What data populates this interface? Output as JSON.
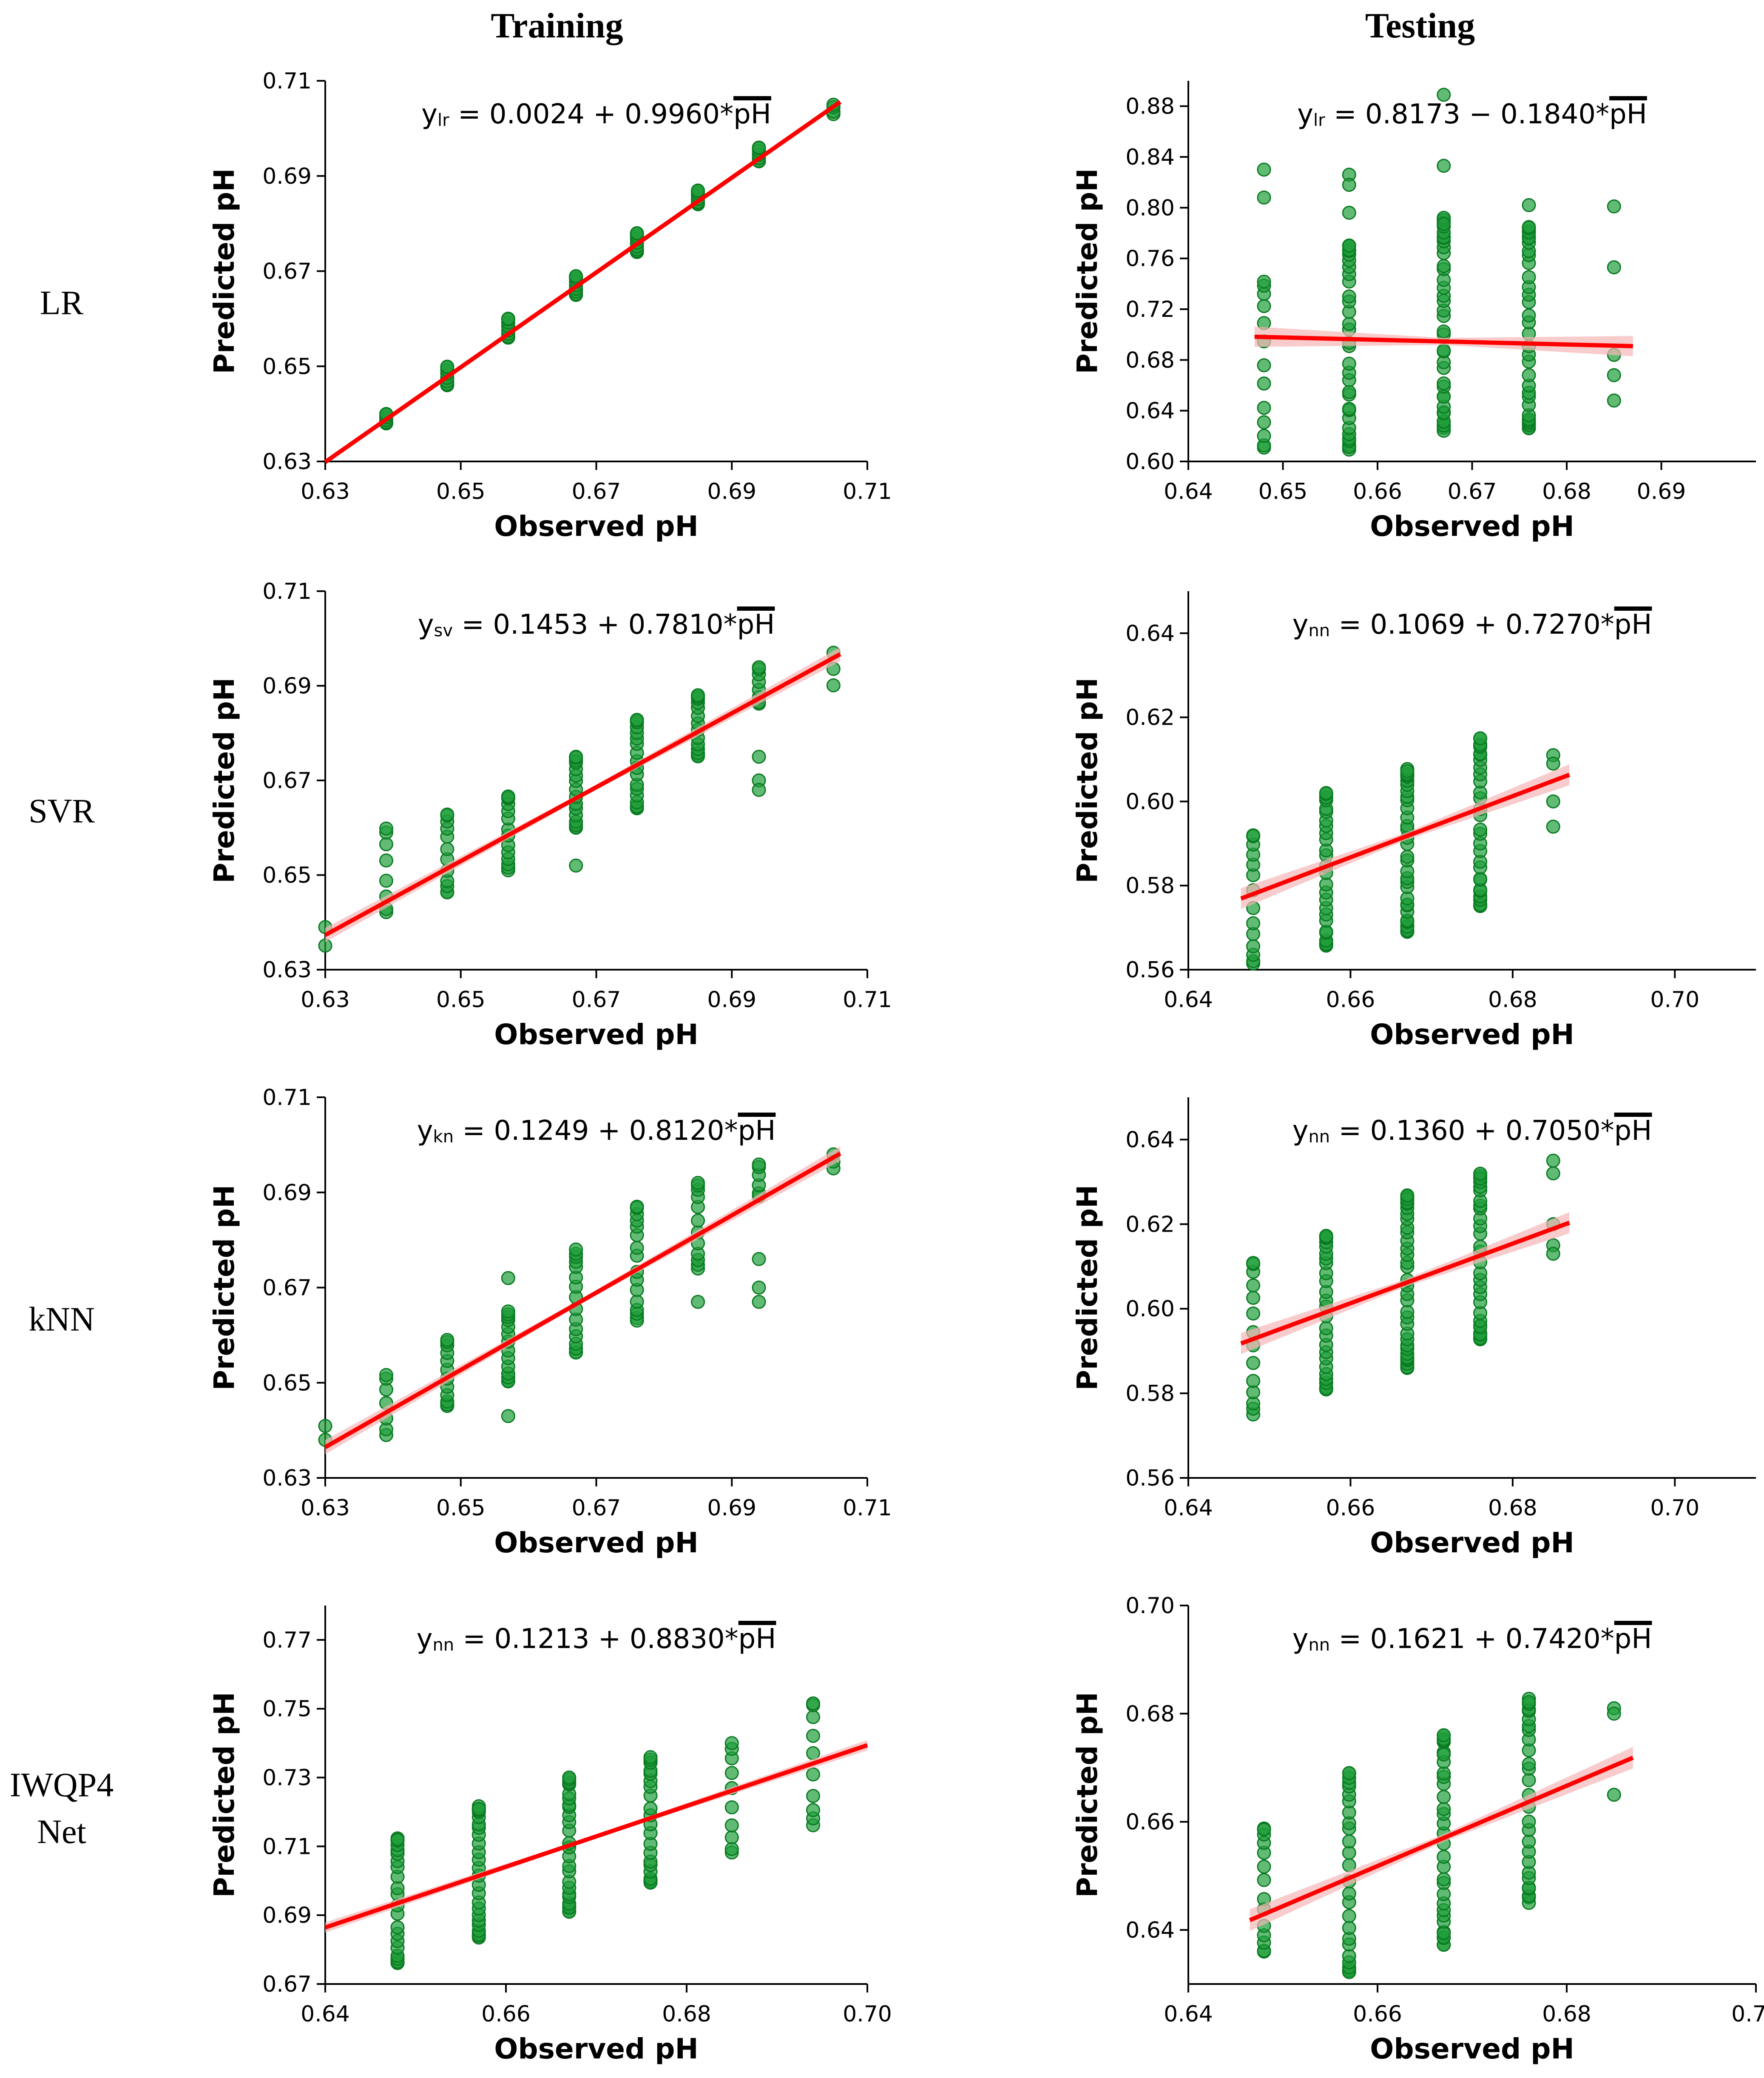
{
  "column_headers": [
    "Training",
    "Testing"
  ],
  "row_labels": [
    {
      "lines": [
        "LR"
      ]
    },
    {
      "lines": [
        "SVR"
      ]
    },
    {
      "lines": [
        "kNN"
      ]
    },
    {
      "lines": [
        "IWQP4",
        "Net"
      ]
    }
  ],
  "colors": {
    "point_fill": "#1f9e3a",
    "point_stroke": "#0a7a22",
    "fit_line": "#ff0000",
    "confidence_band": "#f5b6b6",
    "axis": "#000000"
  },
  "chart_data": [
    {
      "id": "lr-training",
      "type": "scatter",
      "row": 0,
      "col": 0,
      "xlabel": "Observed pH",
      "ylabel": "Predicted pH",
      "xlim": [
        0.63,
        0.71
      ],
      "ylim": [
        0.63,
        0.71
      ],
      "xticks": [
        0.63,
        0.65,
        0.67,
        0.69,
        0.71
      ],
      "yticks": [
        0.63,
        0.65,
        0.67,
        0.69,
        0.71
      ],
      "tick_decimals": 2,
      "equation": {
        "prefix": "y",
        "sub": "lr",
        "body": " = 0.0024 + 0.9960*",
        "var": "pH"
      },
      "fit": {
        "intercept": 0.0024,
        "slope": 0.996,
        "x_range": [
          0.63,
          0.706
        ],
        "band": 0.0
      },
      "columns": [
        {
          "x": 0.639,
          "y_min": 0.638,
          "y_max": 0.64,
          "n": 6
        },
        {
          "x": 0.648,
          "y_min": 0.646,
          "y_max": 0.65,
          "n": 8
        },
        {
          "x": 0.657,
          "y_min": 0.656,
          "y_max": 0.66,
          "n": 8
        },
        {
          "x": 0.667,
          "y_min": 0.665,
          "y_max": 0.669,
          "n": 9
        },
        {
          "x": 0.676,
          "y_min": 0.674,
          "y_max": 0.678,
          "n": 9
        },
        {
          "x": 0.685,
          "y_min": 0.684,
          "y_max": 0.687,
          "n": 8
        },
        {
          "x": 0.694,
          "y_min": 0.693,
          "y_max": 0.696,
          "n": 7
        },
        {
          "x": 0.705,
          "y_min": 0.703,
          "y_max": 0.705,
          "n": 4
        }
      ],
      "points": []
    },
    {
      "id": "lr-testing",
      "type": "scatter",
      "row": 0,
      "col": 1,
      "xlabel": "Observed pH",
      "ylabel": "Predicted pH",
      "xlim": [
        0.64,
        0.7
      ],
      "ylim": [
        0.6,
        0.9
      ],
      "xticks": [
        0.64,
        0.65,
        0.66,
        0.67,
        0.68,
        0.69
      ],
      "yticks": [
        0.6,
        0.64,
        0.68,
        0.72,
        0.76,
        0.8,
        0.84,
        0.88
      ],
      "tick_decimals": 2,
      "equation": {
        "prefix": "y",
        "sub": "lr",
        "body": " = 0.8173 − 0.1840*",
        "var": "pH"
      },
      "fit": {
        "intercept": 0.8173,
        "slope": -0.184,
        "x_range": [
          0.647,
          0.687
        ],
        "band": 0.008
      },
      "columns": [
        {
          "x": 0.648,
          "y_min": 0.61,
          "y_max": 0.742,
          "n": 13
        },
        {
          "x": 0.657,
          "y_min": 0.608,
          "y_max": 0.775,
          "n": 34
        },
        {
          "x": 0.667,
          "y_min": 0.624,
          "y_max": 0.792,
          "n": 38
        },
        {
          "x": 0.676,
          "y_min": 0.622,
          "y_max": 0.786,
          "n": 32
        }
      ],
      "points": [
        {
          "x": 0.648,
          "y": 0.83
        },
        {
          "x": 0.648,
          "y": 0.808
        },
        {
          "x": 0.657,
          "y": 0.826
        },
        {
          "x": 0.657,
          "y": 0.818
        },
        {
          "x": 0.657,
          "y": 0.796
        },
        {
          "x": 0.667,
          "y": 0.889
        },
        {
          "x": 0.667,
          "y": 0.833
        },
        {
          "x": 0.676,
          "y": 0.802
        },
        {
          "x": 0.685,
          "y": 0.801
        },
        {
          "x": 0.685,
          "y": 0.753
        },
        {
          "x": 0.685,
          "y": 0.684
        },
        {
          "x": 0.685,
          "y": 0.668
        },
        {
          "x": 0.685,
          "y": 0.648
        }
      ]
    },
    {
      "id": "svr-training",
      "type": "scatter",
      "row": 1,
      "col": 0,
      "xlabel": "Observed pH",
      "ylabel": "Predicted pH",
      "xlim": [
        0.63,
        0.71
      ],
      "ylim": [
        0.63,
        0.71
      ],
      "xticks": [
        0.63,
        0.65,
        0.67,
        0.69,
        0.71
      ],
      "yticks": [
        0.63,
        0.65,
        0.67,
        0.69,
        0.71
      ],
      "tick_decimals": 2,
      "equation": {
        "prefix": "y",
        "sub": "sv",
        "body": " = 0.1453 + 0.7810*",
        "var": "pH"
      },
      "fit": {
        "intercept": 0.1453,
        "slope": 0.781,
        "x_range": [
          0.63,
          0.706
        ],
        "band": 0.0015
      },
      "columns": [
        {
          "x": 0.63,
          "y_min": 0.635,
          "y_max": 0.639,
          "n": 2
        },
        {
          "x": 0.639,
          "y_min": 0.642,
          "y_max": 0.66,
          "n": 8
        },
        {
          "x": 0.648,
          "y_min": 0.646,
          "y_max": 0.663,
          "n": 12
        },
        {
          "x": 0.657,
          "y_min": 0.651,
          "y_max": 0.667,
          "n": 14
        },
        {
          "x": 0.667,
          "y_min": 0.66,
          "y_max": 0.675,
          "n": 16
        },
        {
          "x": 0.676,
          "y_min": 0.664,
          "y_max": 0.683,
          "n": 18
        },
        {
          "x": 0.685,
          "y_min": 0.675,
          "y_max": 0.688,
          "n": 14
        },
        {
          "x": 0.694,
          "y_min": 0.686,
          "y_max": 0.694,
          "n": 8
        },
        {
          "x": 0.705,
          "y_min": 0.69,
          "y_max": 0.697,
          "n": 3
        }
      ],
      "points": [
        {
          "x": 0.667,
          "y": 0.652
        },
        {
          "x": 0.694,
          "y": 0.675
        },
        {
          "x": 0.694,
          "y": 0.67
        },
        {
          "x": 0.694,
          "y": 0.668
        }
      ]
    },
    {
      "id": "svr-testing",
      "type": "scatter",
      "row": 1,
      "col": 1,
      "xlabel": "Observed pH",
      "ylabel": "Predicted pH",
      "xlim": [
        0.64,
        0.71
      ],
      "ylim": [
        0.56,
        0.65
      ],
      "xticks": [
        0.64,
        0.66,
        0.68,
        0.7
      ],
      "yticks": [
        0.56,
        0.58,
        0.6,
        0.62,
        0.64
      ],
      "tick_decimals": 2,
      "equation": {
        "prefix": "y",
        "sub": "nn",
        "body": " = 0.1069 + 0.7270*",
        "var": "pH"
      },
      "fit": {
        "intercept": 0.1069,
        "slope": 0.727,
        "x_range": [
          0.6465,
          0.687
        ],
        "band": 0.0025
      },
      "columns": [
        {
          "x": 0.648,
          "y_min": 0.561,
          "y_max": 0.592,
          "n": 14
        },
        {
          "x": 0.657,
          "y_min": 0.565,
          "y_max": 0.602,
          "n": 28
        },
        {
          "x": 0.667,
          "y_min": 0.569,
          "y_max": 0.608,
          "n": 34
        },
        {
          "x": 0.676,
          "y_min": 0.575,
          "y_max": 0.615,
          "n": 30
        }
      ],
      "points": [
        {
          "x": 0.685,
          "y": 0.611
        },
        {
          "x": 0.685,
          "y": 0.609
        },
        {
          "x": 0.685,
          "y": 0.6
        },
        {
          "x": 0.685,
          "y": 0.594
        }
      ]
    },
    {
      "id": "knn-training",
      "type": "scatter",
      "row": 2,
      "col": 0,
      "xlabel": "Observed pH",
      "ylabel": "Predicted pH",
      "xlim": [
        0.63,
        0.71
      ],
      "ylim": [
        0.63,
        0.71
      ],
      "xticks": [
        0.63,
        0.65,
        0.67,
        0.69,
        0.71
      ],
      "yticks": [
        0.63,
        0.65,
        0.67,
        0.69,
        0.71
      ],
      "tick_decimals": 2,
      "equation": {
        "prefix": "y",
        "sub": "kn",
        "body": " = 0.1249 + 0.8120*",
        "var": "pH"
      },
      "fit": {
        "intercept": 0.1249,
        "slope": 0.812,
        "x_range": [
          0.63,
          0.706
        ],
        "band": 0.0015
      },
      "columns": [
        {
          "x": 0.63,
          "y_min": 0.638,
          "y_max": 0.641,
          "n": 2
        },
        {
          "x": 0.639,
          "y_min": 0.639,
          "y_max": 0.652,
          "n": 7
        },
        {
          "x": 0.648,
          "y_min": 0.645,
          "y_max": 0.659,
          "n": 12
        },
        {
          "x": 0.657,
          "y_min": 0.65,
          "y_max": 0.665,
          "n": 14
        },
        {
          "x": 0.667,
          "y_min": 0.656,
          "y_max": 0.678,
          "n": 16
        },
        {
          "x": 0.676,
          "y_min": 0.663,
          "y_max": 0.687,
          "n": 16
        },
        {
          "x": 0.685,
          "y_min": 0.674,
          "y_max": 0.692,
          "n": 12
        },
        {
          "x": 0.694,
          "y_min": 0.689,
          "y_max": 0.696,
          "n": 6
        },
        {
          "x": 0.705,
          "y_min": 0.695,
          "y_max": 0.698,
          "n": 3
        }
      ],
      "points": [
        {
          "x": 0.657,
          "y": 0.643
        },
        {
          "x": 0.657,
          "y": 0.672
        },
        {
          "x": 0.685,
          "y": 0.667
        },
        {
          "x": 0.694,
          "y": 0.676
        },
        {
          "x": 0.694,
          "y": 0.67
        },
        {
          "x": 0.694,
          "y": 0.667
        }
      ]
    },
    {
      "id": "knn-testing",
      "type": "scatter",
      "row": 2,
      "col": 1,
      "xlabel": "Observed pH",
      "ylabel": "Predicted pH",
      "xlim": [
        0.64,
        0.71
      ],
      "ylim": [
        0.56,
        0.65
      ],
      "xticks": [
        0.64,
        0.66,
        0.68,
        0.7
      ],
      "yticks": [
        0.56,
        0.58,
        0.6,
        0.62,
        0.64
      ],
      "tick_decimals": 2,
      "equation": {
        "prefix": "y",
        "sub": "nn",
        "body": " = 0.1360 + 0.7050*",
        "var": "pH"
      },
      "fit": {
        "intercept": 0.136,
        "slope": 0.705,
        "x_range": [
          0.6465,
          0.687
        ],
        "band": 0.0025
      },
      "columns": [
        {
          "x": 0.648,
          "y_min": 0.575,
          "y_max": 0.611,
          "n": 14
        },
        {
          "x": 0.657,
          "y_min": 0.58,
          "y_max": 0.618,
          "n": 28
        },
        {
          "x": 0.667,
          "y_min": 0.586,
          "y_max": 0.627,
          "n": 34
        },
        {
          "x": 0.676,
          "y_min": 0.592,
          "y_max": 0.632,
          "n": 30
        }
      ],
      "points": [
        {
          "x": 0.685,
          "y": 0.635
        },
        {
          "x": 0.685,
          "y": 0.632
        },
        {
          "x": 0.685,
          "y": 0.62
        },
        {
          "x": 0.685,
          "y": 0.615
        },
        {
          "x": 0.685,
          "y": 0.613
        }
      ]
    },
    {
      "id": "iwqp4net-training",
      "type": "scatter",
      "row": 3,
      "col": 0,
      "xlabel": "Observed pH",
      "ylabel": "Predicted pH",
      "xlim": [
        0.64,
        0.7
      ],
      "ylim": [
        0.67,
        0.78
      ],
      "xticks": [
        0.64,
        0.66,
        0.68,
        0.7
      ],
      "yticks": [
        0.67,
        0.69,
        0.71,
        0.73,
        0.75,
        0.77
      ],
      "tick_decimals": 2,
      "equation": {
        "prefix": "y",
        "sub": "nn",
        "body": " = 0.1213 + 0.8830*",
        "var": "pH"
      },
      "fit": {
        "intercept": 0.1213,
        "slope": 0.883,
        "x_range": [
          0.64,
          0.7
        ],
        "band": 0.0015
      },
      "columns": [
        {
          "x": 0.648,
          "y_min": 0.675,
          "y_max": 0.713,
          "n": 22
        },
        {
          "x": 0.657,
          "y_min": 0.683,
          "y_max": 0.722,
          "n": 26
        },
        {
          "x": 0.667,
          "y_min": 0.691,
          "y_max": 0.73,
          "n": 26
        },
        {
          "x": 0.676,
          "y_min": 0.699,
          "y_max": 0.736,
          "n": 22
        },
        {
          "x": 0.685,
          "y_min": 0.708,
          "y_max": 0.74,
          "n": 10
        },
        {
          "x": 0.694,
          "y_min": 0.716,
          "y_max": 0.752,
          "n": 10
        }
      ],
      "points": []
    },
    {
      "id": "iwqp4net-testing",
      "type": "scatter",
      "row": 3,
      "col": 1,
      "xlabel": "Observed pH",
      "ylabel": "Predicted pH",
      "xlim": [
        0.64,
        0.7
      ],
      "ylim": [
        0.63,
        0.7
      ],
      "xticks": [
        0.64,
        0.66,
        0.68,
        0.7
      ],
      "yticks": [
        0.64,
        0.66,
        0.68,
        0.7
      ],
      "tick_decimals": 2,
      "equation": {
        "prefix": "y",
        "sub": "nn",
        "body": " = 0.1621 + 0.7420*",
        "var": "pH"
      },
      "fit": {
        "intercept": 0.1621,
        "slope": 0.742,
        "x_range": [
          0.6465,
          0.687
        ],
        "band": 0.002
      },
      "columns": [
        {
          "x": 0.648,
          "y_min": 0.636,
          "y_max": 0.659,
          "n": 14
        },
        {
          "x": 0.657,
          "y_min": 0.632,
          "y_max": 0.669,
          "n": 26
        },
        {
          "x": 0.667,
          "y_min": 0.637,
          "y_max": 0.676,
          "n": 32
        },
        {
          "x": 0.676,
          "y_min": 0.645,
          "y_max": 0.683,
          "n": 28
        }
      ],
      "points": [
        {
          "x": 0.685,
          "y": 0.681
        },
        {
          "x": 0.685,
          "y": 0.68
        },
        {
          "x": 0.685,
          "y": 0.665
        }
      ]
    }
  ]
}
